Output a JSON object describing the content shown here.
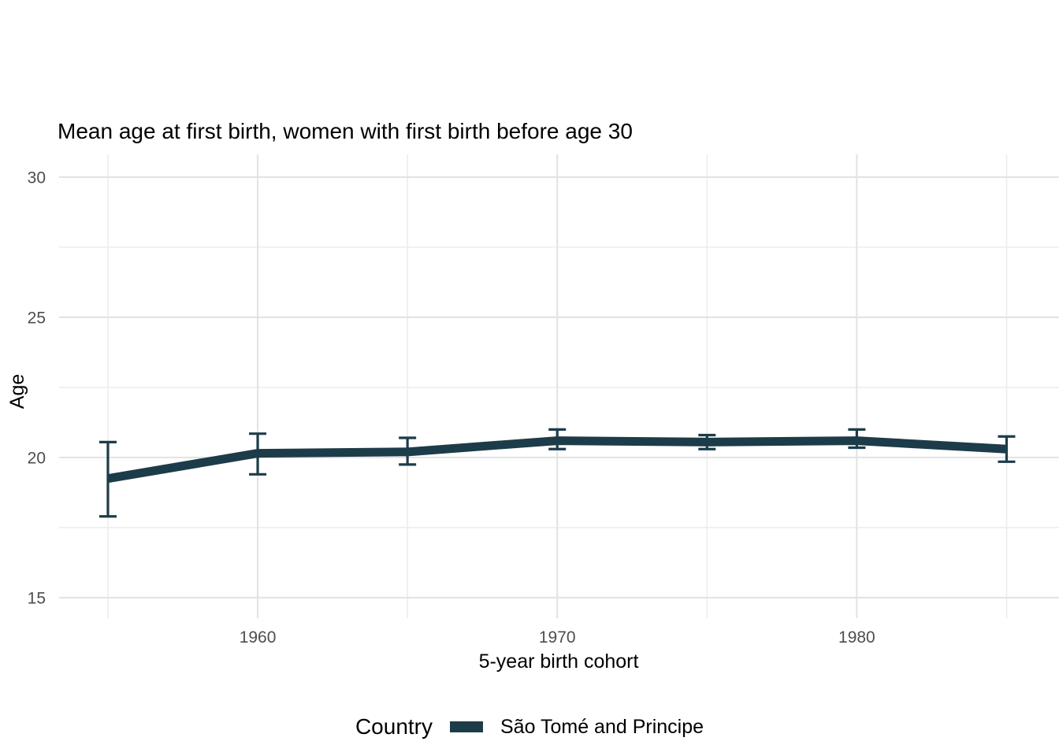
{
  "chart_data": {
    "type": "line",
    "title": "Mean age at first birth, women with first birth before age 30",
    "xlabel": "5-year birth cohort",
    "ylabel": "Age",
    "legend_title": "Country",
    "legend_position": "bottom",
    "grid": true,
    "x": [
      1955,
      1960,
      1965,
      1970,
      1975,
      1980,
      1985
    ],
    "series": [
      {
        "name": "São Tomé and Principe",
        "color": "#1d3c49",
        "values": [
          19.25,
          20.15,
          20.2,
          20.6,
          20.55,
          20.6,
          20.3
        ],
        "err_low": [
          17.9,
          19.4,
          19.75,
          20.3,
          20.3,
          20.35,
          19.85
        ],
        "err_high": [
          20.55,
          20.85,
          20.7,
          21.0,
          20.8,
          21.0,
          20.75
        ]
      }
    ],
    "xlim": [
      1953.37,
      1986.75
    ],
    "ylim": [
      14.27,
      30.81
    ],
    "x_ticks": [
      {
        "value": 1960,
        "label": "1960"
      },
      {
        "value": 1970,
        "label": "1970"
      },
      {
        "value": 1980,
        "label": "1980"
      }
    ],
    "x_minor_gridlines": [
      1955,
      1965,
      1975,
      1985
    ],
    "y_ticks": [
      {
        "value": 15,
        "label": "15"
      },
      {
        "value": 20,
        "label": "20"
      },
      {
        "value": 25,
        "label": "25"
      },
      {
        "value": 30,
        "label": "30"
      }
    ],
    "y_minor_gridlines": [
      17.5,
      22.5,
      27.5
    ],
    "colors": {
      "line": "#1d3c49",
      "grid_major": "#e4e4e4",
      "grid_minor": "#ededed",
      "tick_label": "#4d4d4d",
      "text": "#000000",
      "background": "#ffffff"
    }
  }
}
